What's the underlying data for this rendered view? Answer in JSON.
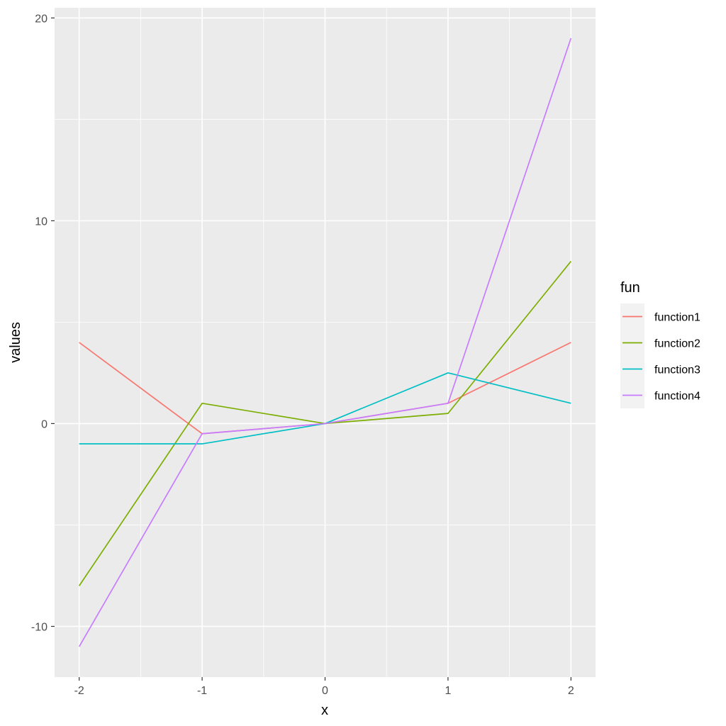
{
  "chart_data": {
    "type": "line",
    "title": "",
    "xlabel": "x",
    "ylabel": "values",
    "x": [
      -2,
      -1,
      0,
      1,
      2
    ],
    "xlim": [
      -2.2,
      2.2
    ],
    "ylim": [
      -12.5,
      20.5
    ],
    "x_ticks": [
      -2,
      -1,
      0,
      1,
      2
    ],
    "x_tick_labels": [
      "-2",
      "-1",
      "0",
      "1",
      "2"
    ],
    "x_minor_ticks": [
      -1.5,
      -0.5,
      0.5,
      1.5
    ],
    "y_ticks": [
      -10,
      0,
      10,
      20
    ],
    "y_tick_labels": [
      "-10",
      "0",
      "10",
      "20"
    ],
    "y_minor_ticks": [
      -5,
      5,
      15
    ],
    "grid": true,
    "legend": {
      "title": "fun",
      "position": "right"
    },
    "series": [
      {
        "name": "function1",
        "color": "#F8766D",
        "values": [
          4,
          -0.5,
          0,
          1,
          4
        ]
      },
      {
        "name": "function2",
        "color": "#7CAE00",
        "values": [
          -8,
          1,
          0,
          0.5,
          8
        ]
      },
      {
        "name": "function3",
        "color": "#00BFC4",
        "values": [
          -1,
          -1,
          0,
          2.5,
          1
        ]
      },
      {
        "name": "function4",
        "color": "#C77CFF",
        "values": [
          -11,
          -0.5,
          0,
          1,
          19
        ]
      }
    ]
  }
}
